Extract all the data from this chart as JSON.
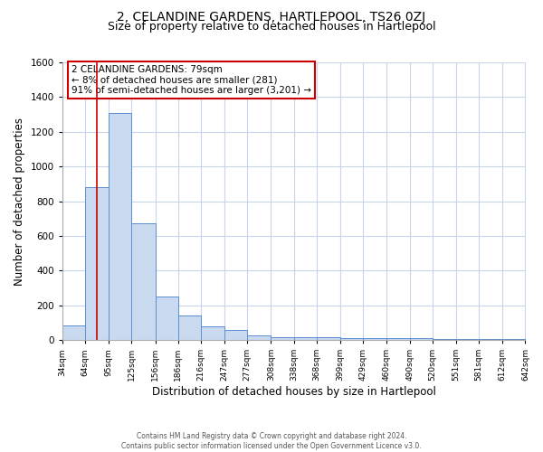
{
  "title": "2, CELANDINE GARDENS, HARTLEPOOL, TS26 0ZJ",
  "subtitle": "Size of property relative to detached houses in Hartlepool",
  "xlabel": "Distribution of detached houses by size in Hartlepool",
  "ylabel": "Number of detached properties",
  "bins": [
    34,
    64,
    95,
    125,
    156,
    186,
    216,
    247,
    277,
    308,
    338,
    368,
    399,
    429,
    460,
    490,
    520,
    551,
    581,
    612,
    642
  ],
  "counts": [
    85,
    880,
    1310,
    670,
    250,
    140,
    80,
    55,
    25,
    18,
    18,
    15,
    13,
    13,
    10,
    10,
    8,
    8,
    8,
    8
  ],
  "bar_color": "#c9d9f0",
  "bar_edge_color": "#5b8fcf",
  "ylim": [
    0,
    1600
  ],
  "yticks": [
    0,
    200,
    400,
    600,
    800,
    1000,
    1200,
    1400,
    1600
  ],
  "vline_x": 79,
  "vline_color": "#cc0000",
  "annotation_text": "2 CELANDINE GARDENS: 79sqm\n← 8% of detached houses are smaller (281)\n91% of semi-detached houses are larger (3,201) →",
  "annotation_box_color": "#ffffff",
  "annotation_box_edgecolor": "#cc0000",
  "footer1": "Contains HM Land Registry data © Crown copyright and database right 2024.",
  "footer2": "Contains public sector information licensed under the Open Government Licence v3.0.",
  "bg_color": "#ffffff",
  "grid_color": "#c8d4e8",
  "title_fontsize": 10,
  "subtitle_fontsize": 9,
  "tick_labels": [
    "34sqm",
    "64sqm",
    "95sqm",
    "125sqm",
    "156sqm",
    "186sqm",
    "216sqm",
    "247sqm",
    "277sqm",
    "308sqm",
    "338sqm",
    "368sqm",
    "399sqm",
    "429sqm",
    "460sqm",
    "490sqm",
    "520sqm",
    "551sqm",
    "581sqm",
    "612sqm",
    "642sqm"
  ]
}
